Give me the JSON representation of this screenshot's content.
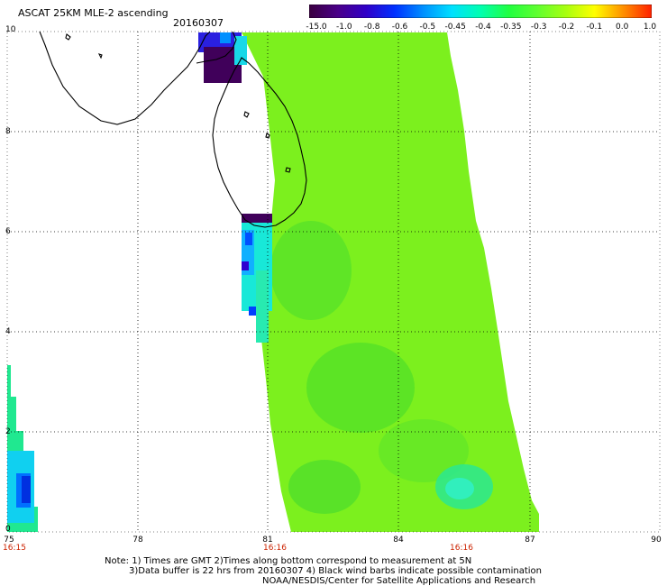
{
  "title": "ASCAT 25KM MLE-2 ascending",
  "date": "20160307",
  "colorbar": {
    "labels": [
      "-15.0",
      "-1.0",
      "-0.8",
      "-0.6",
      "-0.5",
      "-0.45",
      "-0.4",
      "-0.35",
      "-0.3",
      "-0.2",
      "-0.1",
      "0.0",
      "1.0"
    ],
    "colors": [
      "#3a0040",
      "#4a0088",
      "#3000c8",
      "#0030ff",
      "#0090ff",
      "#00e0ff",
      "#00ffb0",
      "#20ff40",
      "#60ff30",
      "#a8ff10",
      "#ffff00",
      "#ff9000",
      "#ff2000"
    ]
  },
  "axes": {
    "lon_range": [
      75,
      90
    ],
    "lat_range": [
      0,
      10
    ],
    "x_labels": [
      "75",
      "78",
      "81",
      "84",
      "87",
      "90"
    ],
    "y_labels": [
      "10",
      "8",
      "6",
      "4",
      "2",
      "0"
    ],
    "gridlines": true
  },
  "times": [
    {
      "lon": 75,
      "label": "16:15"
    },
    {
      "lon": 81,
      "label": "16:16"
    },
    {
      "lon": 85.5,
      "label": "16:16"
    }
  ],
  "notes": {
    "line1": "Note: 1) Times are GMT 2)Times along bottom correspond to measurement at 5N",
    "line2": "3)Data buffer is 22 hrs from 20160307 4) Black wind barbs indicate possible contamination",
    "line3": "NOAA/NESDIS/Center for Satellite Applications and Research"
  },
  "colors": {
    "swath_main": "#7cf01e",
    "swath_dark": "#52e028",
    "swath_cyan": "#20f0d0",
    "swath_blue": "#0060ff",
    "swath_purple": "#40005a",
    "coastline": "#000000",
    "grid": "#000000"
  }
}
